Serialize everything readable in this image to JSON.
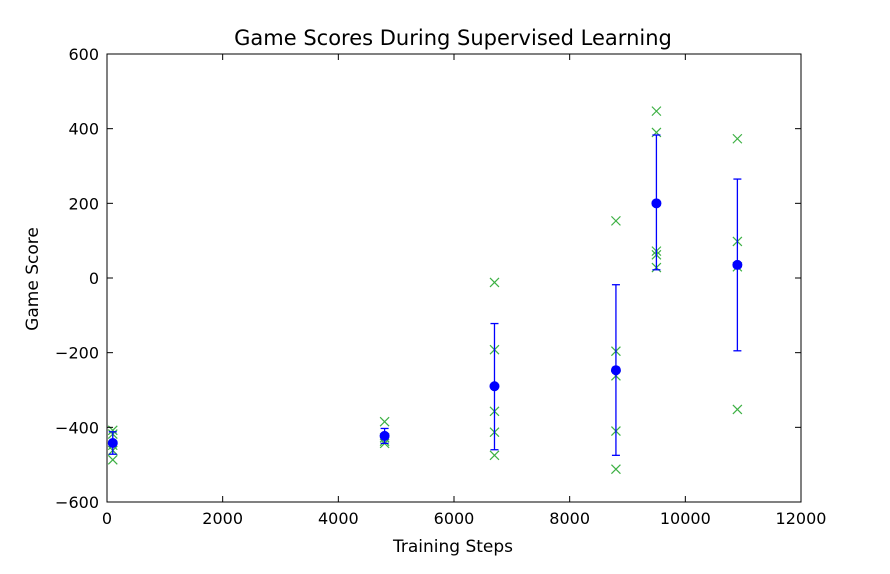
{
  "chart_data": {
    "type": "scatter",
    "title": "Game Scores During Supervised Learning",
    "xlabel": "Training Steps",
    "ylabel": "Game Score",
    "xlim": [
      0,
      12000
    ],
    "ylim": [
      -600,
      600
    ],
    "xticks": [
      0,
      2000,
      4000,
      6000,
      8000,
      10000,
      12000
    ],
    "yticks": [
      -600,
      -400,
      -200,
      0,
      200,
      400,
      600
    ],
    "grid": false,
    "colors": {
      "mean": "#0000ff",
      "errorbar": "#0000ff",
      "samples": "#3cb043"
    },
    "mean_series": {
      "marker": "circle",
      "points": [
        {
          "x": 100,
          "y": -442,
          "err_low": -472,
          "err_high": -412
        },
        {
          "x": 4800,
          "y": -423,
          "err_low": -443,
          "err_high": -403
        },
        {
          "x": 6700,
          "y": -290,
          "err_low": -460,
          "err_high": -122
        },
        {
          "x": 8800,
          "y": -247,
          "err_low": -475,
          "err_high": -18
        },
        {
          "x": 9500,
          "y": 200,
          "err_low": 22,
          "err_high": 383
        },
        {
          "x": 10900,
          "y": 35,
          "err_low": -195,
          "err_high": 265
        }
      ]
    },
    "sample_series": {
      "marker": "x",
      "points": [
        {
          "x": 100,
          "y": -408
        },
        {
          "x": 100,
          "y": -418
        },
        {
          "x": 100,
          "y": -448
        },
        {
          "x": 100,
          "y": -462
        },
        {
          "x": 100,
          "y": -487
        },
        {
          "x": 4800,
          "y": -385
        },
        {
          "x": 4800,
          "y": -428
        },
        {
          "x": 4800,
          "y": -437
        },
        {
          "x": 4800,
          "y": -443
        },
        {
          "x": 6700,
          "y": -12
        },
        {
          "x": 6700,
          "y": -192
        },
        {
          "x": 6700,
          "y": -357
        },
        {
          "x": 6700,
          "y": -413
        },
        {
          "x": 6700,
          "y": -475
        },
        {
          "x": 8800,
          "y": 153
        },
        {
          "x": 8800,
          "y": -196
        },
        {
          "x": 8800,
          "y": -262
        },
        {
          "x": 8800,
          "y": -410
        },
        {
          "x": 8800,
          "y": -512
        },
        {
          "x": 9500,
          "y": 447
        },
        {
          "x": 9500,
          "y": 390
        },
        {
          "x": 9500,
          "y": 72
        },
        {
          "x": 9500,
          "y": 62
        },
        {
          "x": 9500,
          "y": 28
        },
        {
          "x": 10900,
          "y": 373
        },
        {
          "x": 10900,
          "y": 98
        },
        {
          "x": 10900,
          "y": 30
        },
        {
          "x": 10900,
          "y": -352
        }
      ]
    }
  }
}
